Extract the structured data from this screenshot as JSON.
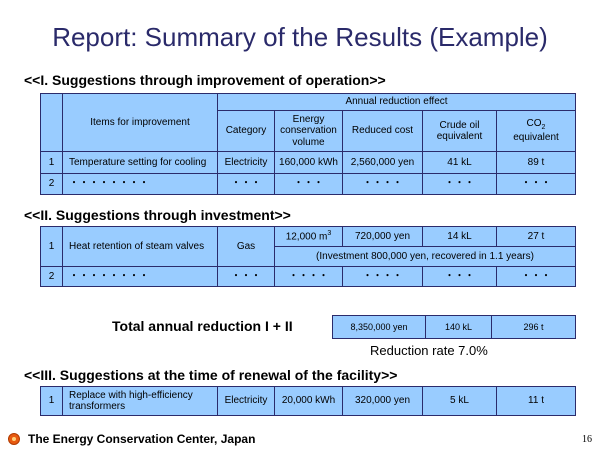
{
  "title": "Report: Summary of the Results (Example)",
  "section1": {
    "heading": "<<I. Suggestions through improvement of operation>>",
    "header_items": "Items for improvement",
    "header_annual": "Annual reduction effect",
    "col_category": "Category",
    "col_energy": "Energy conservation volume",
    "col_cost": "Reduced cost",
    "col_crude": "Crude oil equivalent",
    "col_co2_main": "CO",
    "col_co2_sub": "2",
    "col_co2_tail": "equivalent",
    "rows": [
      {
        "no": "1",
        "item": "Temperature setting for cooling",
        "category": "Electricity",
        "energy": "160,000 kWh",
        "cost": "2,560,000 yen",
        "crude": "41 kL",
        "co2": "89 t"
      },
      {
        "no": "2",
        "item": "・・・・・・・・",
        "category": "・・・",
        "energy": "・・・",
        "cost": "・・・・",
        "crude": "・・・",
        "co2": "・・・"
      }
    ]
  },
  "section2": {
    "heading": "<<II. Suggestions through investment>>",
    "row1": {
      "no": "1",
      "item": "Heat retention of steam valves",
      "category": "Gas",
      "energy_main": "12,000 m",
      "energy_sup": "3",
      "cost": "720,000 yen",
      "crude": "14 kL",
      "co2": "27 t",
      "note": "(Investment 800,000 yen, recovered in 1.1 years)"
    },
    "row2": {
      "no": "2",
      "item": "・・・・・・・・",
      "category": "・・・",
      "energy": "・・・・",
      "cost": "・・・・",
      "crude": "・・・",
      "co2": "・・・"
    }
  },
  "total": {
    "label": "Total annual reduction  I + II",
    "cost": "8,350,000 yen",
    "crude": "140 kL",
    "co2": "296 t",
    "rate": "Reduction rate 7.0%"
  },
  "section3": {
    "heading": "<<III. Suggestions at the time of renewal of the facility>>",
    "row1": {
      "no": "1",
      "item": "Replace with high-efficiency transformers",
      "category": "Electricity",
      "energy": "20,000 kWh",
      "cost": "320,000 yen",
      "crude": "5 kL",
      "co2": "11 t"
    }
  },
  "footer": {
    "org": "The Energy Conservation Center, Japan",
    "page": "16"
  }
}
